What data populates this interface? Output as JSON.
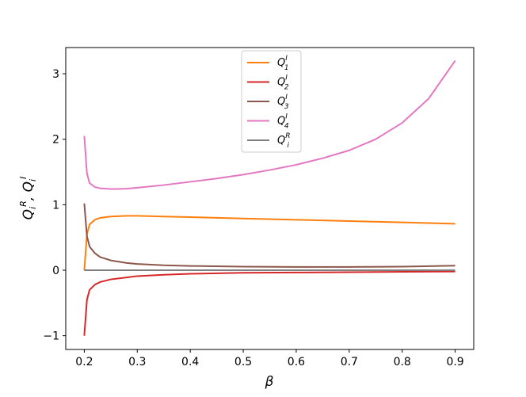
{
  "chart_data": {
    "type": "line",
    "xlabel": "β",
    "ylabel": "Q_i^R, Q_i^I",
    "xlim": [
      0.165,
      0.935
    ],
    "ylim": [
      -1.21,
      3.4
    ],
    "xticks": [
      0.2,
      0.3,
      0.4,
      0.5,
      0.6,
      0.7,
      0.8,
      0.9
    ],
    "xtick_labels": [
      "0.2",
      "0.3",
      "0.4",
      "0.5",
      "0.6",
      "0.7",
      "0.8",
      "0.9"
    ],
    "yticks": [
      -1,
      0,
      1,
      2,
      3
    ],
    "ytick_labels": [
      "−1",
      "0",
      "1",
      "2",
      "3"
    ],
    "grid": false,
    "legend_position": "top-center",
    "series": [
      {
        "name": "Q_1^I",
        "base": "Q",
        "sub": "1",
        "sup": "I",
        "color": "#ff7f0e",
        "x": [
          0.2,
          0.205,
          0.21,
          0.22,
          0.23,
          0.25,
          0.28,
          0.3,
          0.35,
          0.4,
          0.5,
          0.6,
          0.7,
          0.8,
          0.9
        ],
        "y": [
          0.0,
          0.55,
          0.7,
          0.77,
          0.8,
          0.82,
          0.83,
          0.83,
          0.82,
          0.81,
          0.79,
          0.77,
          0.75,
          0.73,
          0.71
        ]
      },
      {
        "name": "Q_2^I",
        "base": "Q",
        "sub": "2",
        "sup": "I",
        "color": "#d62728",
        "x": [
          0.2,
          0.205,
          0.21,
          0.22,
          0.23,
          0.25,
          0.28,
          0.3,
          0.35,
          0.4,
          0.5,
          0.6,
          0.7,
          0.8,
          0.9
        ],
        "y": [
          -1.0,
          -0.45,
          -0.3,
          -0.22,
          -0.18,
          -0.14,
          -0.11,
          -0.09,
          -0.07,
          -0.055,
          -0.04,
          -0.035,
          -0.03,
          -0.025,
          -0.02
        ]
      },
      {
        "name": "Q_3^I",
        "base": "Q",
        "sub": "3",
        "sup": "I",
        "color": "#8c564b",
        "x": [
          0.2,
          0.205,
          0.21,
          0.22,
          0.23,
          0.25,
          0.28,
          0.3,
          0.35,
          0.4,
          0.5,
          0.6,
          0.7,
          0.8,
          0.9
        ],
        "y": [
          1.02,
          0.52,
          0.36,
          0.26,
          0.2,
          0.15,
          0.11,
          0.095,
          0.075,
          0.065,
          0.055,
          0.05,
          0.05,
          0.055,
          0.07
        ]
      },
      {
        "name": "Q_4^I",
        "base": "Q",
        "sub": "4",
        "sup": "I",
        "color": "#e377c2",
        "x": [
          0.2,
          0.205,
          0.21,
          0.22,
          0.23,
          0.25,
          0.26,
          0.28,
          0.3,
          0.35,
          0.4,
          0.45,
          0.5,
          0.55,
          0.6,
          0.65,
          0.7,
          0.75,
          0.8,
          0.85,
          0.9
        ],
        "y": [
          2.05,
          1.48,
          1.33,
          1.27,
          1.25,
          1.24,
          1.24,
          1.245,
          1.26,
          1.3,
          1.35,
          1.4,
          1.46,
          1.53,
          1.61,
          1.71,
          1.83,
          2.0,
          2.25,
          2.62,
          3.2
        ]
      },
      {
        "name": "Q_i^R",
        "base": "Q",
        "sub": "i",
        "sup": "R",
        "color": "#7f7f7f",
        "x": [
          0.2,
          0.9
        ],
        "y": [
          0.0,
          0.0
        ]
      }
    ]
  }
}
